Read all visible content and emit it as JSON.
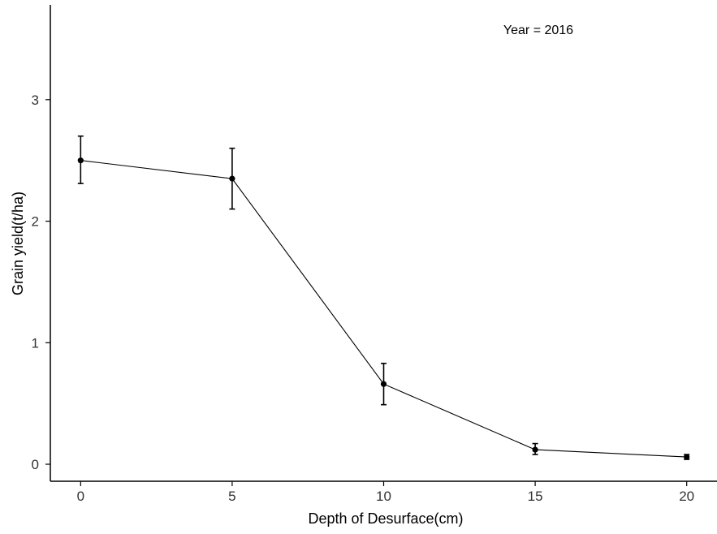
{
  "chart_data": {
    "type": "line",
    "title": "",
    "xlabel": "Depth of Desurface(cm)",
    "ylabel": "Grain yield(t/ha)",
    "annotation": "Year = 2016",
    "x": [
      0,
      5,
      10,
      15,
      20
    ],
    "x_ticks": [
      0,
      5,
      10,
      15,
      20
    ],
    "y_ticks": [
      0,
      1,
      2,
      3
    ],
    "xlim": [
      -1,
      21
    ],
    "ylim": [
      -0.14,
      3.78
    ],
    "series": [
      {
        "values": [
          2.5,
          2.35,
          0.66,
          0.12,
          0.06
        ],
        "error_low": [
          2.31,
          2.1,
          0.49,
          0.08,
          0.04
        ],
        "error_high": [
          2.7,
          2.6,
          0.83,
          0.17,
          0.08
        ]
      }
    ],
    "grid": false,
    "legend": "none",
    "colors": {
      "series": "#000000",
      "axis": "#000000",
      "tick_text": "#333333"
    }
  }
}
